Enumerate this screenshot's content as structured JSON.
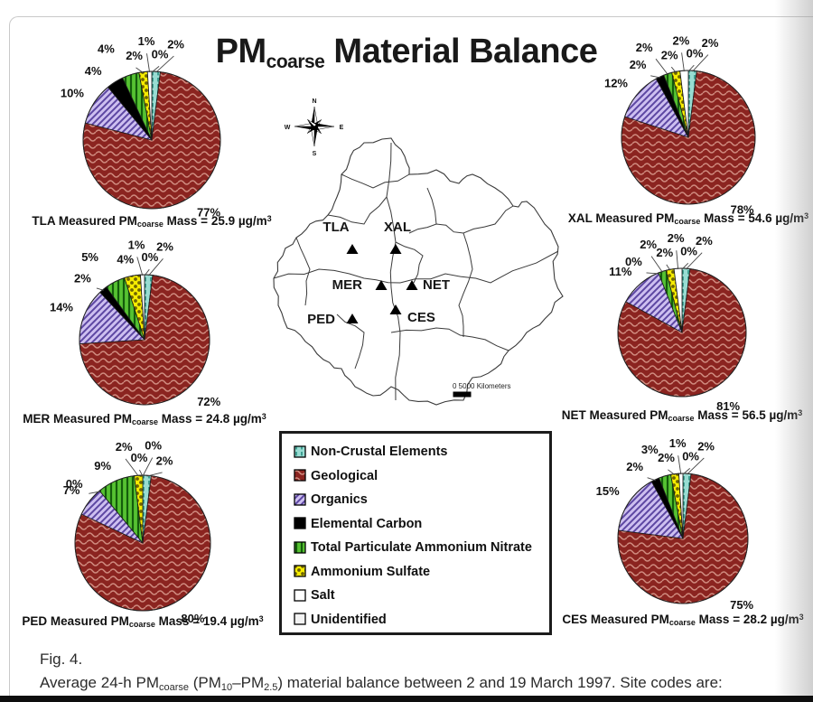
{
  "title": {
    "pm": "PM",
    "sub": "coarse",
    "rest": " Material Balance"
  },
  "legend": {
    "items": [
      {
        "key": "noncrustal",
        "label": "Non-Crustal Elements",
        "color": "#8fd8cd"
      },
      {
        "key": "geological",
        "label": "Geological",
        "color": "#8b2420"
      },
      {
        "key": "organics",
        "label": "Organics",
        "color": "#cdbff0"
      },
      {
        "key": "elemental",
        "label": "Elemental Carbon",
        "color": "#000000"
      },
      {
        "key": "nitrate",
        "label": "Total Particulate Ammonium Nitrate",
        "color": "#56c232"
      },
      {
        "key": "sulfate",
        "label": "Ammonium Sulfate",
        "color": "#f6ec00"
      },
      {
        "key": "salt",
        "label": "Salt",
        "color": "#ffffff"
      },
      {
        "key": "unidentified",
        "label": "Unidentified",
        "color": "#f3f3f3"
      }
    ]
  },
  "chart_data": {
    "type": "pie",
    "title": "PMcoarse Material Balance",
    "value_suffix": "%",
    "categories": [
      "Non-Crustal Elements",
      "Geological",
      "Organics",
      "Elemental Carbon",
      "Total Particulate Ammonium Nitrate",
      "Ammonium Sulfate",
      "Salt",
      "Unidentified"
    ],
    "series": [
      {
        "site": "TLA",
        "mass_ug_m3": "25.9",
        "values": [
          2,
          77,
          10,
          4,
          4,
          2,
          1,
          0
        ]
      },
      {
        "site": "XAL",
        "mass_ug_m3": "54.6",
        "values": [
          2,
          78,
          12,
          2,
          2,
          2,
          2,
          0
        ]
      },
      {
        "site": "MER",
        "mass_ug_m3": "24.8",
        "values": [
          2,
          72,
          14,
          2,
          5,
          4,
          1,
          0
        ]
      },
      {
        "site": "NET",
        "mass_ug_m3": "56.5",
        "values": [
          2,
          81,
          11,
          0,
          2,
          2,
          2,
          0
        ]
      },
      {
        "site": "PED",
        "mass_ug_m3": "19.4",
        "values": [
          2,
          80,
          7,
          0,
          9,
          2,
          0,
          0
        ]
      },
      {
        "site": "CES",
        "mass_ug_m3": "28.2",
        "values": [
          2,
          75,
          15,
          2,
          3,
          2,
          1,
          0
        ]
      }
    ]
  },
  "mass_caption": {
    "measured": " Measured PM",
    "sub": "coarse",
    "mass_eq": " Mass = ",
    "unit": " µg/m",
    "exp": "3"
  },
  "map": {
    "sites": [
      "TLA",
      "XAL",
      "MER",
      "NET",
      "PED",
      "CES"
    ],
    "compass": {
      "n": "N",
      "e": "E",
      "s": "S",
      "w": "W"
    },
    "scale_text": "0  5000 Kilometers"
  },
  "caption": {
    "fig": "Fig. 4.",
    "parts": [
      {
        "t": "n",
        "s": "Average 24-h PM"
      },
      {
        "t": "sub",
        "s": "coarse"
      },
      {
        "t": "n",
        "s": " (PM"
      },
      {
        "t": "sub",
        "s": "10"
      },
      {
        "t": "n",
        "s": "–PM"
      },
      {
        "t": "sub",
        "s": "2.5"
      },
      {
        "t": "n",
        "s": ") material balance between 2 and 19 March 1997. Site codes are:"
      }
    ]
  }
}
